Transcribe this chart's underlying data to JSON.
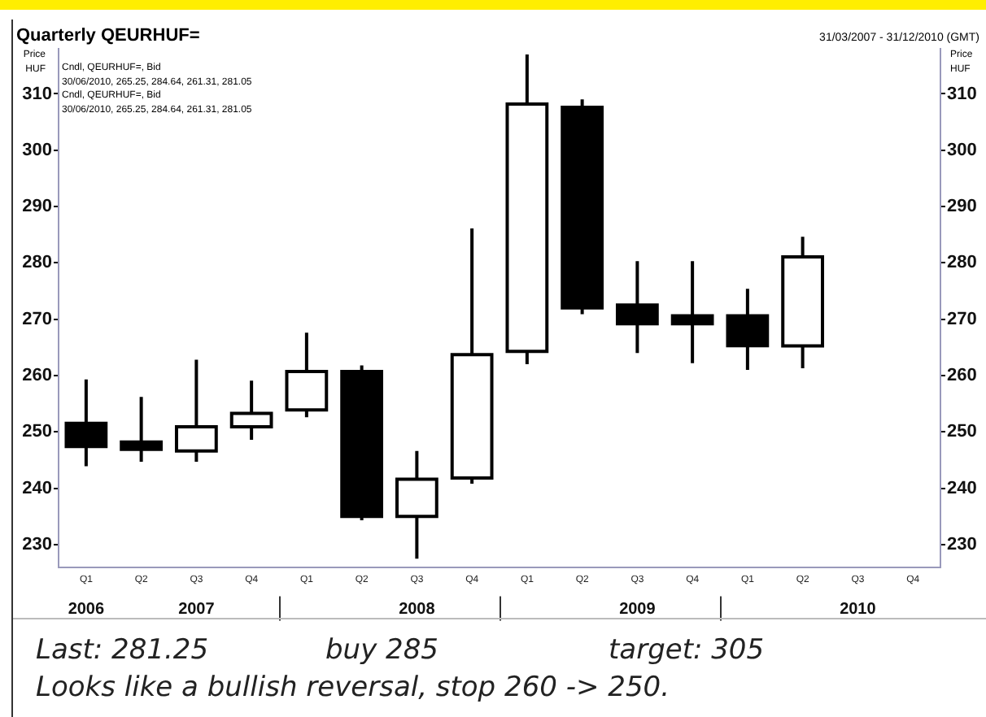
{
  "chart_data": {
    "type": "candlestick",
    "title": "Quarterly QEURHUF=",
    "ylabel": "Price\nHUF",
    "y2label": "Price\nHUF",
    "categories": [
      "Q1",
      "Q2",
      "Q3",
      "Q4",
      "Q1",
      "Q2",
      "Q3",
      "Q4",
      "Q1",
      "Q2",
      "Q3",
      "Q4",
      "Q1",
      "Q2",
      "Q3",
      "Q4"
    ],
    "ohlc": [
      [
        251.5,
        259.3,
        243.9,
        247.4
      ],
      [
        248.2,
        256.2,
        244.7,
        246.9
      ],
      [
        246.6,
        262.8,
        244.7,
        250.9
      ],
      [
        250.9,
        259.1,
        248.6,
        253.3
      ],
      [
        253.9,
        267.6,
        252.6,
        260.7
      ],
      [
        260.7,
        261.8,
        234.3,
        235.0
      ],
      [
        235.0,
        246.6,
        227.5,
        241.6
      ],
      [
        241.8,
        286.1,
        240.8,
        263.7
      ],
      [
        264.3,
        317.0,
        262.0,
        308.2
      ],
      [
        307.6,
        309.0,
        270.9,
        272.0
      ],
      [
        272.5,
        280.3,
        264.0,
        269.2
      ],
      [
        270.6,
        280.3,
        262.2,
        269.2
      ],
      [
        270.6,
        275.4,
        261.0,
        265.3
      ],
      [
        265.25,
        284.64,
        261.31,
        281.05
      ],
      null,
      null
    ],
    "ylim": [
      226,
      318
    ],
    "yticks": [
      230,
      240,
      250,
      260,
      270,
      280,
      290,
      300,
      310
    ],
    "y2lim": [
      226,
      318
    ],
    "y2ticks": [
      230,
      240,
      250,
      260,
      270,
      280,
      290,
      300,
      310
    ],
    "grid": false,
    "annotations": [
      "31/03/2007 - 31/12/2010 (GMT)",
      "Cndl, QEURHUF=, Bid",
      "30/06/2010, 265.25, 284.64, 261.31, 281.05",
      "Cndl, QEURHUF=, Bid",
      "30/06/2010, 265.25, 284.64, 261.31, 281.05",
      "2006",
      "2007",
      "2008",
      "2009",
      "2010",
      "Last: 281.25",
      "buy 285",
      "target: 305",
      "Looks like a bullish reversal, stop 260 -> 250."
    ]
  }
}
